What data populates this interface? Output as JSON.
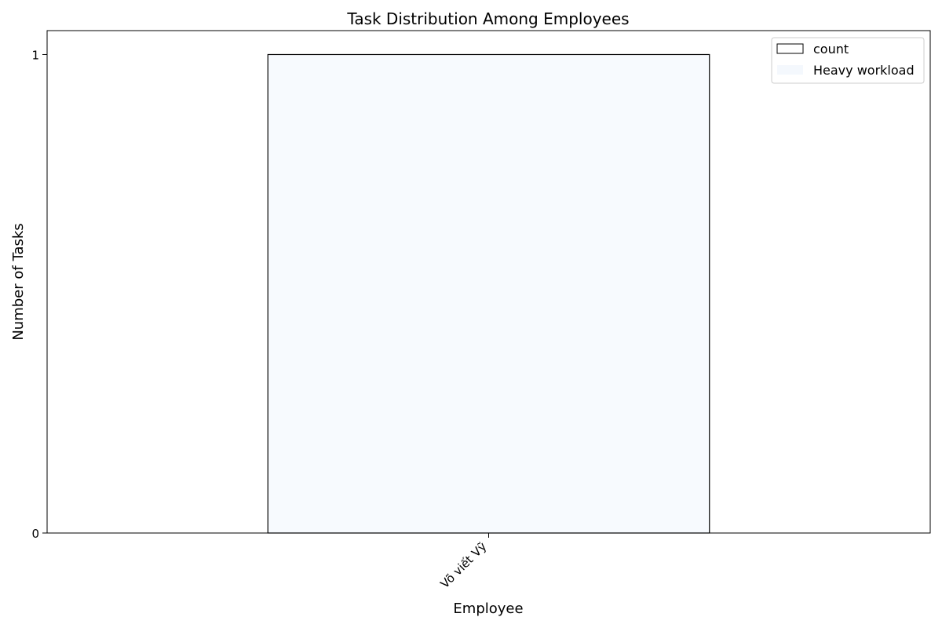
{
  "chart_data": {
    "type": "bar",
    "title": "Task Distribution Among Employees",
    "xlabel": "Employee",
    "ylabel": "Number of Tasks",
    "categories": [
      "Võ viết Vỹ"
    ],
    "series": [
      {
        "name": "count",
        "values": [
          1
        ]
      }
    ],
    "ylim": [
      0,
      1.05
    ],
    "yticks": [
      0,
      1
    ],
    "grid": false,
    "legend": {
      "placement": "top-right",
      "entries": [
        {
          "label": "count",
          "style": "outlined",
          "color": "#ffffff"
        },
        {
          "label": "Heavy workload",
          "style": "filled",
          "color": "#f4f8fd"
        }
      ]
    },
    "bar_color": "#f7fafe",
    "bar_edge_color": "#000000"
  }
}
